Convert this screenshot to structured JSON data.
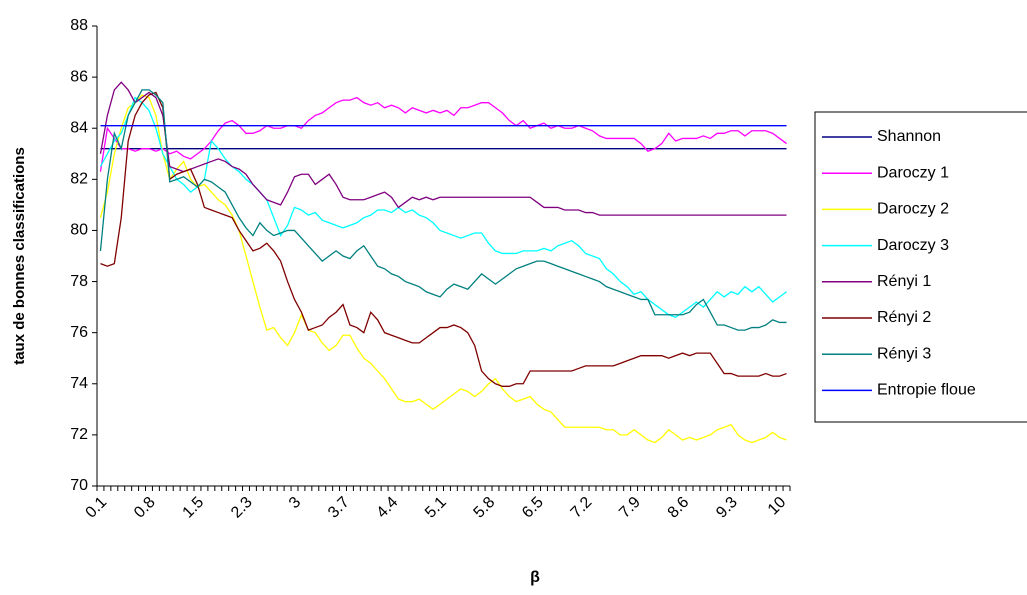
{
  "chart_data": {
    "type": "line",
    "y_label": "taux de bonnes classifications",
    "x_label": "β",
    "categories": [
      "0.1",
      null,
      null,
      null,
      null,
      null,
      null,
      "0.8",
      null,
      null,
      null,
      null,
      null,
      null,
      "1.5",
      null,
      null,
      null,
      null,
      null,
      null,
      "2.3",
      null,
      null,
      null,
      null,
      null,
      null,
      "3",
      null,
      null,
      null,
      null,
      null,
      null,
      "3.7",
      null,
      null,
      null,
      null,
      null,
      null,
      "4.4",
      null,
      null,
      null,
      null,
      null,
      null,
      "5.1",
      null,
      null,
      null,
      null,
      null,
      null,
      "5.8",
      null,
      null,
      null,
      null,
      null,
      null,
      "6.5",
      null,
      null,
      null,
      null,
      null,
      null,
      "7.2",
      null,
      null,
      null,
      null,
      null,
      null,
      "7.9",
      null,
      null,
      null,
      null,
      null,
      null,
      "8.6",
      null,
      null,
      null,
      null,
      null,
      null,
      "9.3",
      null,
      null,
      null,
      null,
      null,
      null,
      "10",
      null
    ],
    "ylim": [
      70,
      88
    ],
    "yticks": [
      70,
      72,
      74,
      76,
      78,
      80,
      82,
      84,
      86,
      88
    ],
    "grid": false,
    "legend": "right",
    "series": [
      {
        "name": "Shannon",
        "color": "#000080",
        "values": [
          83.2,
          83.2,
          83.2,
          83.2,
          83.2,
          83.2,
          83.2,
          83.2,
          83.2,
          83.2,
          83.2,
          83.2,
          83.2,
          83.2,
          83.2,
          83.2,
          83.2,
          83.2,
          83.2,
          83.2,
          83.2,
          83.2,
          83.2,
          83.2,
          83.2,
          83.2,
          83.2,
          83.2,
          83.2,
          83.2,
          83.2,
          83.2,
          83.2,
          83.2,
          83.2,
          83.2,
          83.2,
          83.2,
          83.2,
          83.2,
          83.2,
          83.2,
          83.2,
          83.2,
          83.2,
          83.2,
          83.2,
          83.2,
          83.2,
          83.2,
          83.2,
          83.2,
          83.2,
          83.2,
          83.2,
          83.2,
          83.2,
          83.2,
          83.2,
          83.2,
          83.2,
          83.2,
          83.2,
          83.2,
          83.2,
          83.2,
          83.2,
          83.2,
          83.2,
          83.2,
          83.2,
          83.2,
          83.2,
          83.2,
          83.2,
          83.2,
          83.2,
          83.2,
          83.2,
          83.2,
          83.2,
          83.2,
          83.2,
          83.2,
          83.2,
          83.2,
          83.2,
          83.2,
          83.2,
          83.2,
          83.2,
          83.2,
          83.2,
          83.2,
          83.2,
          83.2,
          83.2,
          83.2,
          83.2,
          83.2
        ]
      },
      {
        "name": "Daroczy 1",
        "color": "#ff00ff",
        "values": [
          82.3,
          84.0,
          83.6,
          83.2,
          83.2,
          83.1,
          83.2,
          83.2,
          83.1,
          83.2,
          83.0,
          83.1,
          82.9,
          82.8,
          83.0,
          83.2,
          83.5,
          83.9,
          84.2,
          84.3,
          84.1,
          83.8,
          83.8,
          83.9,
          84.1,
          84.0,
          84.0,
          84.1,
          84.1,
          84.0,
          84.3,
          84.5,
          84.6,
          84.8,
          85.0,
          85.1,
          85.1,
          85.2,
          85.0,
          84.9,
          85.0,
          84.8,
          84.9,
          84.8,
          84.6,
          84.8,
          84.7,
          84.6,
          84.7,
          84.6,
          84.7,
          84.5,
          84.8,
          84.8,
          84.9,
          85.0,
          85.0,
          84.8,
          84.6,
          84.3,
          84.1,
          84.3,
          84.0,
          84.1,
          84.2,
          84.0,
          84.1,
          84.0,
          84.0,
          84.1,
          84.0,
          83.9,
          83.7,
          83.6,
          83.6,
          83.6,
          83.6,
          83.6,
          83.4,
          83.1,
          83.2,
          83.4,
          83.8,
          83.5,
          83.6,
          83.6,
          83.6,
          83.7,
          83.6,
          83.8,
          83.8,
          83.9,
          83.9,
          83.7,
          83.9,
          83.9,
          83.9,
          83.8,
          83.6,
          83.4
        ]
      },
      {
        "name": "Daroczy 2",
        "color": "#ffff00",
        "values": [
          80.5,
          81.5,
          83.0,
          84.0,
          84.8,
          85.0,
          85.3,
          85.2,
          84.5,
          83.0,
          82.0,
          82.4,
          82.7,
          82.0,
          81.7,
          81.8,
          81.5,
          81.2,
          81.0,
          80.6,
          80.0,
          79.0,
          78.0,
          77.0,
          76.1,
          76.2,
          75.8,
          75.5,
          76.0,
          76.7,
          76.1,
          76.0,
          75.6,
          75.3,
          75.5,
          75.9,
          75.9,
          75.4,
          75.0,
          74.8,
          74.5,
          74.2,
          73.8,
          73.4,
          73.3,
          73.3,
          73.4,
          73.2,
          73.0,
          73.2,
          73.4,
          73.6,
          73.8,
          73.7,
          73.5,
          73.7,
          74.0,
          74.2,
          73.8,
          73.5,
          73.3,
          73.4,
          73.5,
          73.2,
          73.0,
          72.9,
          72.6,
          72.3,
          72.3,
          72.3,
          72.3,
          72.3,
          72.3,
          72.2,
          72.2,
          72.0,
          72.0,
          72.2,
          72.0,
          71.8,
          71.7,
          71.9,
          72.2,
          72.0,
          71.8,
          71.9,
          71.8,
          71.9,
          72.0,
          72.2,
          72.3,
          72.4,
          72.0,
          71.8,
          71.7,
          71.8,
          71.9,
          72.1,
          71.9,
          71.8
        ]
      },
      {
        "name": "Daroczy 3",
        "color": "#00ffff",
        "values": [
          82.5,
          83.0,
          83.5,
          83.8,
          84.5,
          85.2,
          85.0,
          84.7,
          84.0,
          83.0,
          82.5,
          82.0,
          81.8,
          81.5,
          81.7,
          82.0,
          83.5,
          83.2,
          82.8,
          82.5,
          82.3,
          82.0,
          81.8,
          81.5,
          81.2,
          80.5,
          79.8,
          80.2,
          80.9,
          80.8,
          80.6,
          80.7,
          80.4,
          80.3,
          80.2,
          80.1,
          80.2,
          80.3,
          80.5,
          80.6,
          80.8,
          80.8,
          80.7,
          80.9,
          80.7,
          80.8,
          80.6,
          80.5,
          80.3,
          80.0,
          79.9,
          79.8,
          79.7,
          79.8,
          79.9,
          79.9,
          79.5,
          79.2,
          79.1,
          79.1,
          79.1,
          79.2,
          79.2,
          79.2,
          79.3,
          79.2,
          79.4,
          79.5,
          79.6,
          79.4,
          79.1,
          79.0,
          78.9,
          78.5,
          78.3,
          78.0,
          77.8,
          77.5,
          77.6,
          77.3,
          77.1,
          76.9,
          76.7,
          76.6,
          76.8,
          77.0,
          77.2,
          77.0,
          77.3,
          77.6,
          77.4,
          77.6,
          77.5,
          77.8,
          77.6,
          77.8,
          77.5,
          77.2,
          77.4,
          77.6
        ]
      },
      {
        "name": "Rényi 1",
        "color": "#800080",
        "values": [
          83.0,
          84.5,
          85.5,
          85.8,
          85.5,
          85.0,
          85.2,
          85.4,
          85.2,
          84.5,
          82.5,
          82.4,
          82.3,
          82.4,
          82.5,
          82.6,
          82.7,
          82.8,
          82.7,
          82.5,
          82.4,
          82.2,
          81.8,
          81.5,
          81.2,
          81.1,
          81.0,
          81.5,
          82.1,
          82.2,
          82.2,
          81.8,
          82.0,
          82.2,
          81.8,
          81.3,
          81.2,
          81.2,
          81.2,
          81.3,
          81.4,
          81.5,
          81.3,
          80.9,
          81.1,
          81.3,
          81.2,
          81.3,
          81.2,
          81.3,
          81.3,
          81.3,
          81.3,
          81.3,
          81.3,
          81.3,
          81.3,
          81.3,
          81.3,
          81.3,
          81.3,
          81.3,
          81.3,
          81.1,
          80.9,
          80.9,
          80.9,
          80.8,
          80.8,
          80.8,
          80.7,
          80.7,
          80.6,
          80.6,
          80.6,
          80.6,
          80.6,
          80.6,
          80.6,
          80.6,
          80.6,
          80.6,
          80.6,
          80.6,
          80.6,
          80.6,
          80.6,
          80.6,
          80.6,
          80.6,
          80.6,
          80.6,
          80.6,
          80.6,
          80.6,
          80.6,
          80.6,
          80.6,
          80.6,
          80.6
        ]
      },
      {
        "name": "Rényi 2",
        "color": "#800000",
        "values": [
          78.7,
          78.6,
          78.7,
          80.5,
          83.5,
          84.5,
          85.0,
          85.3,
          85.4,
          84.8,
          82.0,
          82.2,
          82.3,
          82.4,
          81.8,
          80.9,
          80.8,
          80.7,
          80.6,
          80.5,
          80.0,
          79.6,
          79.2,
          79.3,
          79.5,
          79.2,
          78.8,
          78.0,
          77.3,
          76.8,
          76.1,
          76.2,
          76.3,
          76.6,
          76.8,
          77.1,
          76.3,
          76.2,
          76.0,
          76.8,
          76.5,
          76.0,
          75.9,
          75.8,
          75.7,
          75.6,
          75.6,
          75.8,
          76.0,
          76.2,
          76.2,
          76.3,
          76.2,
          76.0,
          75.5,
          74.5,
          74.2,
          74.0,
          73.9,
          73.9,
          74.0,
          74.0,
          74.5,
          74.5,
          74.5,
          74.5,
          74.5,
          74.5,
          74.5,
          74.6,
          74.7,
          74.7,
          74.7,
          74.7,
          74.7,
          74.8,
          74.9,
          75.0,
          75.1,
          75.1,
          75.1,
          75.1,
          75.0,
          75.1,
          75.2,
          75.1,
          75.2,
          75.2,
          75.2,
          74.8,
          74.4,
          74.4,
          74.3,
          74.3,
          74.3,
          74.3,
          74.4,
          74.3,
          74.3,
          74.4
        ]
      },
      {
        "name": "Rényi 3",
        "color": "#008080",
        "values": [
          79.2,
          82.0,
          83.8,
          83.2,
          84.5,
          85.0,
          85.5,
          85.5,
          85.3,
          85.0,
          81.9,
          82.0,
          82.1,
          81.9,
          81.7,
          82.0,
          81.9,
          81.7,
          81.5,
          81.0,
          80.5,
          80.1,
          79.8,
          80.3,
          80.0,
          79.8,
          79.9,
          80.0,
          80.0,
          79.7,
          79.4,
          79.1,
          78.8,
          79.0,
          79.2,
          79.0,
          78.9,
          79.2,
          79.4,
          79.0,
          78.6,
          78.5,
          78.3,
          78.2,
          78.0,
          77.9,
          77.8,
          77.6,
          77.5,
          77.4,
          77.7,
          77.9,
          77.8,
          77.7,
          78.0,
          78.3,
          78.1,
          77.9,
          78.1,
          78.3,
          78.5,
          78.6,
          78.7,
          78.8,
          78.8,
          78.7,
          78.6,
          78.5,
          78.4,
          78.3,
          78.2,
          78.1,
          78.0,
          77.8,
          77.7,
          77.6,
          77.5,
          77.4,
          77.3,
          77.3,
          76.7,
          76.7,
          76.7,
          76.7,
          76.7,
          76.8,
          77.1,
          77.3,
          76.8,
          76.3,
          76.3,
          76.2,
          76.1,
          76.1,
          76.2,
          76.2,
          76.3,
          76.5,
          76.4,
          76.4
        ]
      },
      {
        "name": "Entropie floue",
        "color": "#0000ff",
        "values": [
          84.1,
          84.1,
          84.1,
          84.1,
          84.1,
          84.1,
          84.1,
          84.1,
          84.1,
          84.1,
          84.1,
          84.1,
          84.1,
          84.1,
          84.1,
          84.1,
          84.1,
          84.1,
          84.1,
          84.1,
          84.1,
          84.1,
          84.1,
          84.1,
          84.1,
          84.1,
          84.1,
          84.1,
          84.1,
          84.1,
          84.1,
          84.1,
          84.1,
          84.1,
          84.1,
          84.1,
          84.1,
          84.1,
          84.1,
          84.1,
          84.1,
          84.1,
          84.1,
          84.1,
          84.1,
          84.1,
          84.1,
          84.1,
          84.1,
          84.1,
          84.1,
          84.1,
          84.1,
          84.1,
          84.1,
          84.1,
          84.1,
          84.1,
          84.1,
          84.1,
          84.1,
          84.1,
          84.1,
          84.1,
          84.1,
          84.1,
          84.1,
          84.1,
          84.1,
          84.1,
          84.1,
          84.1,
          84.1,
          84.1,
          84.1,
          84.1,
          84.1,
          84.1,
          84.1,
          84.1,
          84.1,
          84.1,
          84.1,
          84.1,
          84.1,
          84.1,
          84.1,
          84.1,
          84.1,
          84.1,
          84.1,
          84.1,
          84.1,
          84.1,
          84.1,
          84.1,
          84.1,
          84.1,
          84.1,
          84.1
        ]
      }
    ]
  }
}
